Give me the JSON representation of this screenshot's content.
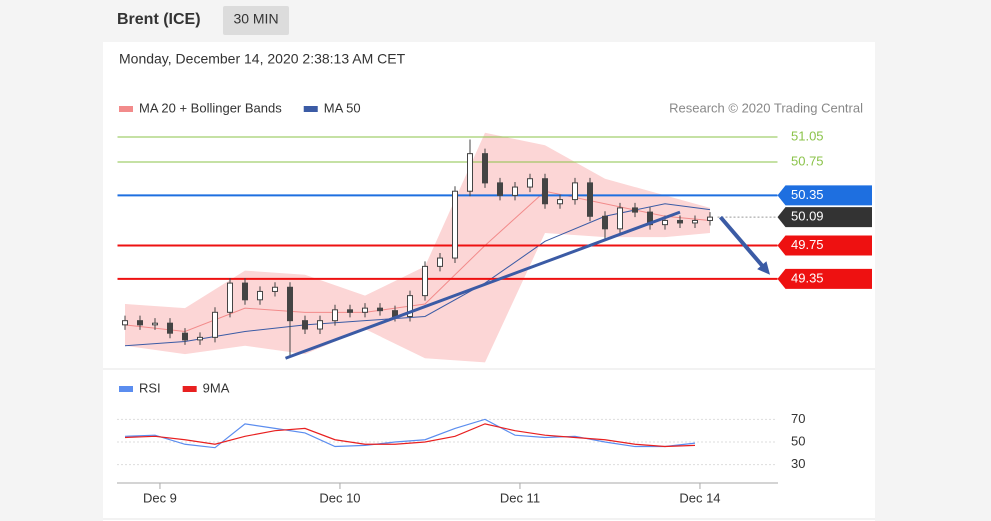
{
  "header": {
    "instrument": "Brent (ICE)",
    "interval": "30 MIN"
  },
  "timestamp": "Monday, December 14, 2020 2:38:13 AM CET",
  "credit": "Research © 2020 Trading Central",
  "chart_data": [
    {
      "type": "candlestick",
      "legend": [
        {
          "name": "MA 20 + Bollinger Bands",
          "color": "#f28b8b"
        },
        {
          "name": "MA 50",
          "color": "#3b5ba5"
        }
      ],
      "xlim": [
        -0.5,
        43.5
      ],
      "xticks": [
        {
          "value": 2.33,
          "label": "Dec 9"
        },
        {
          "value": 14.33,
          "label": "Dec 10"
        },
        {
          "value": 26.33,
          "label": "Dec 11"
        },
        {
          "value": 38.33,
          "label": "Dec 14"
        }
      ],
      "ylim": [
        48.3,
        51.15
      ],
      "open": [
        48.8,
        48.85,
        48.8,
        48.82,
        48.7,
        48.62,
        48.65,
        48.95,
        49.3,
        49.1,
        49.2,
        49.25,
        48.85,
        48.75,
        48.85,
        48.98,
        48.95,
        49.0,
        48.97,
        48.9,
        49.15,
        49.5,
        49.6,
        50.4,
        50.85,
        50.5,
        50.35,
        50.45,
        50.55,
        50.25,
        50.3,
        50.5,
        50.1,
        49.95,
        50.2,
        50.15,
        50.0,
        50.05,
        50.02,
        50.05
      ],
      "high": [
        48.91,
        48.91,
        48.88,
        48.88,
        48.76,
        48.71,
        49.01,
        49.36,
        49.36,
        49.26,
        49.31,
        49.31,
        48.91,
        48.91,
        49.04,
        49.04,
        49.06,
        49.06,
        49.03,
        49.21,
        49.56,
        49.66,
        50.46,
        51.02,
        50.91,
        50.56,
        50.51,
        50.61,
        50.61,
        50.36,
        50.56,
        50.56,
        50.16,
        50.26,
        50.26,
        50.21,
        50.11,
        50.11,
        50.11,
        50.15
      ],
      "low": [
        48.74,
        48.74,
        48.74,
        48.64,
        48.56,
        48.56,
        48.59,
        48.89,
        49.04,
        49.04,
        49.14,
        48.42,
        48.69,
        48.69,
        48.79,
        48.89,
        48.89,
        48.91,
        48.84,
        48.84,
        49.09,
        49.44,
        49.54,
        50.34,
        50.44,
        50.29,
        50.29,
        50.39,
        50.19,
        50.19,
        50.24,
        50.04,
        49.82,
        49.89,
        50.09,
        49.94,
        49.94,
        49.96,
        49.96,
        49.99
      ],
      "close": [
        48.85,
        48.8,
        48.82,
        48.7,
        48.62,
        48.65,
        48.95,
        49.3,
        49.1,
        49.2,
        49.25,
        48.85,
        48.75,
        48.85,
        48.98,
        48.95,
        49.0,
        48.97,
        48.9,
        49.15,
        49.5,
        49.6,
        50.4,
        50.85,
        50.5,
        50.35,
        50.45,
        50.55,
        50.25,
        50.3,
        50.5,
        50.1,
        49.95,
        50.2,
        50.15,
        50.0,
        50.05,
        50.02,
        50.05,
        50.09
      ],
      "bands": {
        "x": [
          0,
          4,
          8,
          12,
          16,
          20,
          24,
          28,
          32,
          36,
          39
        ],
        "upper": [
          49.05,
          49.0,
          49.45,
          49.4,
          49.15,
          49.5,
          51.1,
          50.95,
          50.55,
          50.35,
          50.2
        ],
        "lower": [
          48.55,
          48.45,
          48.55,
          48.45,
          48.75,
          48.4,
          48.35,
          49.9,
          49.85,
          49.85,
          49.9
        ],
        "ma20": [
          48.8,
          48.72,
          49.0,
          48.95,
          48.95,
          49.05,
          49.75,
          50.4,
          50.25,
          50.1,
          50.05
        ],
        "ma50": [
          48.55,
          48.6,
          48.72,
          48.8,
          48.85,
          48.9,
          49.3,
          49.8,
          50.1,
          50.25,
          50.18
        ]
      },
      "trendline": {
        "x": [
          10.7,
          37
        ],
        "y": [
          48.4,
          50.15
        ],
        "color": "#3b5ba5"
      },
      "forecast_arrow": {
        "x": [
          39.7,
          43.0
        ],
        "y": [
          50.09,
          49.4
        ],
        "color": "#3b5ba5"
      },
      "levels": [
        {
          "value": 51.05,
          "color": "#8bc34a",
          "tag": false,
          "dashed": false
        },
        {
          "value": 50.75,
          "color": "#8bc34a",
          "tag": false,
          "dashed": false
        },
        {
          "value": 50.35,
          "color": "#1e6fe0",
          "tag": true,
          "dashed": false
        },
        {
          "value": 50.09,
          "color": "#333333",
          "tag": true,
          "dashed": true
        },
        {
          "value": 49.75,
          "color": "#ee1111",
          "tag": true,
          "dashed": false
        },
        {
          "value": 49.35,
          "color": "#ee1111",
          "tag": true,
          "dashed": false
        }
      ]
    },
    {
      "type": "line",
      "x": [
        0,
        2,
        4,
        6,
        8,
        10,
        12,
        14,
        16,
        18,
        20,
        22,
        24,
        26,
        28,
        30,
        32,
        34,
        36,
        38
      ],
      "series": [
        {
          "name": "RSI",
          "color": "#5b8def",
          "values": [
            55,
            56,
            48,
            45,
            66,
            62,
            58,
            46,
            47,
            50,
            52,
            62,
            70,
            56,
            54,
            55,
            50,
            46,
            46,
            49
          ]
        },
        {
          "name": "9MA",
          "color": "#e82020",
          "values": [
            54,
            55,
            52,
            48,
            55,
            60,
            62,
            52,
            48,
            48,
            50,
            55,
            66,
            60,
            56,
            54,
            52,
            48,
            46,
            47
          ]
        }
      ],
      "ylim": [
        20,
        80
      ],
      "yticks": [
        70,
        50,
        30
      ]
    }
  ]
}
